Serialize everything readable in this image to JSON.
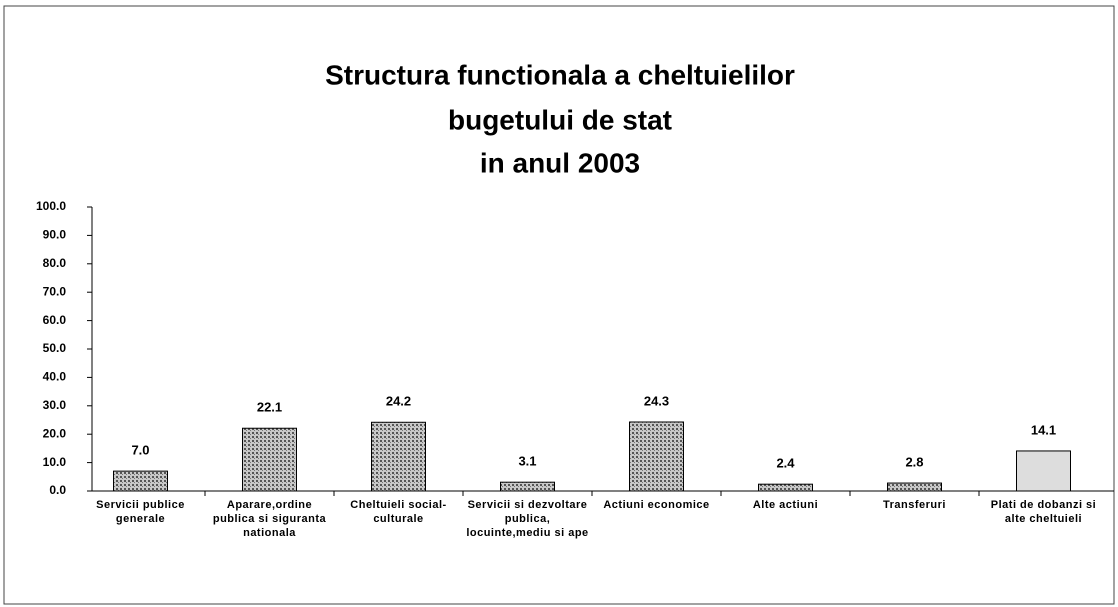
{
  "chart_data": {
    "type": "bar",
    "title": [
      "Structura functionala a cheltuielilor",
      "bugetului de stat",
      "in anul 2003"
    ],
    "categories": [
      "Servicii publice generale",
      "Aparare,ordine publica si siguranta nationala",
      "Cheltuieli social-culturale",
      "Servicii si dezvoltare publica, locuinte,mediu si ape",
      "Actiuni economice",
      "Alte actiuni",
      "Transferuri",
      "Plati de dobanzi si alte cheltuieli"
    ],
    "values": [
      7.0,
      22.1,
      24.2,
      3.1,
      24.3,
      2.4,
      2.8,
      14.1
    ],
    "value_labels": [
      "7.0",
      "22.1",
      "24.2",
      "3.1",
      "24.3",
      "2.4",
      "2.8",
      "14.1"
    ],
    "color": "#9a9a9a",
    "ylim": [
      0,
      100
    ],
    "yticks": [
      {
        "value": 0,
        "label": "0.0"
      },
      {
        "value": 10,
        "label": "10.0"
      },
      {
        "value": 20,
        "label": "20.0"
      },
      {
        "value": 30,
        "label": "30.0"
      },
      {
        "value": 40,
        "label": "40.0"
      },
      {
        "value": 50,
        "label": "50.0"
      },
      {
        "value": 60,
        "label": "60.0"
      },
      {
        "value": 70,
        "label": "70.0"
      },
      {
        "value": 80,
        "label": "80.0"
      },
      {
        "value": 90,
        "label": "90.0"
      },
      {
        "value": 100,
        "label": "100.0"
      }
    ]
  }
}
